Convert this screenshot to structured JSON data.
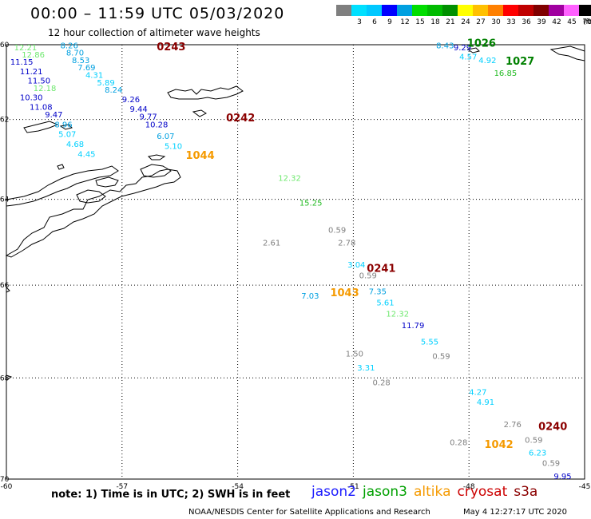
{
  "title": "00:00 – 11:59 UTC 05/03/2020",
  "subtitle": "12 hour collection of altimeter wave heights",
  "note": "note: 1) Time is in UTC; 2) SWH is in feet",
  "credit": "NOAA/NESDIS Center for Satellite Applications and Research",
  "stamp": "May  4 12:27:17 UTC 2020",
  "satellites": [
    {
      "name": "jason2",
      "color": "#1a1aff"
    },
    {
      "name": "jason3",
      "color": "#00a000"
    },
    {
      "name": "altika",
      "color": "#f59a00"
    },
    {
      "name": "cryosat",
      "color": "#cc0000"
    },
    {
      "name": "s3a",
      "color": "#8b0000"
    }
  ],
  "color_scale": {
    "unit": "(ft)",
    "bins": [
      {
        "label": "",
        "color": "#7f7f7f"
      },
      {
        "label": "3",
        "color": "#00e0ff"
      },
      {
        "label": "6",
        "color": "#00c8ff"
      },
      {
        "label": "9",
        "color": "#0000ff"
      },
      {
        "label": "12",
        "color": "#00a0e0"
      },
      {
        "label": "15",
        "color": "#00dd00"
      },
      {
        "label": "18",
        "color": "#00bb00"
      },
      {
        "label": "21",
        "color": "#009000"
      },
      {
        "label": "24",
        "color": "#ffff00"
      },
      {
        "label": "27",
        "color": "#ffc000"
      },
      {
        "label": "30",
        "color": "#ff8000"
      },
      {
        "label": "33",
        "color": "#ff0000"
      },
      {
        "label": "36",
        "color": "#c00000"
      },
      {
        "label": "39",
        "color": "#800000"
      },
      {
        "label": "42",
        "color": "#a000a0"
      },
      {
        "label": "45",
        "color": "#ff60ff"
      },
      {
        "label": "70",
        "color": "#000000"
      }
    ]
  },
  "map": {
    "lon_min": -60,
    "lon_max": -45,
    "lat_top": -60,
    "lat_bottom": -70,
    "lon_ticks": [
      -60,
      -57,
      -54,
      -51,
      -48,
      -45
    ],
    "lon_tick_labels": [
      "-60",
      "-57",
      "-54",
      "-51",
      "-48",
      "-45"
    ],
    "lat_ticks": [
      -60,
      -62,
      -64,
      -66,
      -68,
      -70
    ],
    "lat_tick_labels": [
      "-60",
      "-62",
      "-64",
      "-66",
      "-68",
      "-70"
    ],
    "grid": true,
    "lat_scale": "mercator"
  },
  "chart_data": {
    "type": "scatter",
    "title": "00:00 – 11:59 UTC 05/03/2020",
    "subtitle": "12 hour collection of altimeter wave heights",
    "x_label": "",
    "y_label": "",
    "xlim": [
      -60,
      -45
    ],
    "ylim": [
      -70,
      -60
    ],
    "points": [
      {
        "lon": -59.8,
        "lat": -60.15,
        "text": "12.21",
        "color": "#6ee86e"
      },
      {
        "lon": -59.6,
        "lat": -60.35,
        "text": "12.86",
        "color": "#6ee86e"
      },
      {
        "lon": -58.6,
        "lat": -60.1,
        "text": "8.26",
        "color": "#00a0e0"
      },
      {
        "lon": -58.45,
        "lat": -60.3,
        "text": "8.70",
        "color": "#00a0e0"
      },
      {
        "lon": -58.3,
        "lat": -60.5,
        "text": "8.53",
        "color": "#00a0e0"
      },
      {
        "lon": -58.15,
        "lat": -60.7,
        "text": "7.69",
        "color": "#00a0e0"
      },
      {
        "lon": -57.95,
        "lat": -60.9,
        "text": "4.31",
        "color": "#00d0ff"
      },
      {
        "lon": -57.65,
        "lat": -61.1,
        "text": "5.89",
        "color": "#00d0ff"
      },
      {
        "lon": -57.45,
        "lat": -61.3,
        "text": "8.24",
        "color": "#00a0e0"
      },
      {
        "lon": -57.0,
        "lat": -61.55,
        "text": "9.26",
        "color": "#0000c8"
      },
      {
        "lon": -56.8,
        "lat": -61.8,
        "text": "9.44",
        "color": "#0000c8"
      },
      {
        "lon": -56.55,
        "lat": -62.0,
        "text": "9.77",
        "color": "#0000c8"
      },
      {
        "lon": -56.4,
        "lat": -62.2,
        "text": "10.28",
        "color": "#0000c8"
      },
      {
        "lon": -56.1,
        "lat": -62.5,
        "text": "6.07",
        "color": "#00a0e0"
      },
      {
        "lon": -55.9,
        "lat": -62.75,
        "text": "5.10",
        "color": "#00d0ff"
      },
      {
        "lon": -59.9,
        "lat": -60.55,
        "text": "11.15",
        "color": "#0000c8"
      },
      {
        "lon": -59.65,
        "lat": -60.8,
        "text": "11.21",
        "color": "#0000c8"
      },
      {
        "lon": -59.45,
        "lat": -61.05,
        "text": "11.50",
        "color": "#0000c8"
      },
      {
        "lon": -59.3,
        "lat": -61.25,
        "text": "12.18",
        "color": "#6ee86e"
      },
      {
        "lon": -59.65,
        "lat": -61.5,
        "text": "10.30",
        "color": "#0000c8"
      },
      {
        "lon": -59.4,
        "lat": -61.75,
        "text": "11.08",
        "color": "#0000c8"
      },
      {
        "lon": -59.0,
        "lat": -61.95,
        "text": "9.47",
        "color": "#0000c8"
      },
      {
        "lon": -58.75,
        "lat": -62.2,
        "text": "8.96",
        "color": "#00a0e0"
      },
      {
        "lon": -58.65,
        "lat": -62.45,
        "text": "5.07",
        "color": "#00d0ff"
      },
      {
        "lon": -58.45,
        "lat": -62.7,
        "text": "4.68",
        "color": "#00d0ff"
      },
      {
        "lon": -58.15,
        "lat": -62.95,
        "text": "4.45",
        "color": "#00d0ff"
      },
      {
        "lon": -52.95,
        "lat": -63.55,
        "text": "12.32",
        "color": "#6ee86e"
      },
      {
        "lon": -52.4,
        "lat": -64.15,
        "text": "15.25",
        "color": "#22bb22"
      },
      {
        "lon": -51.65,
        "lat": -64.8,
        "text": "0.59",
        "color": "#808080"
      },
      {
        "lon": -53.35,
        "lat": -65.1,
        "text": "2.61",
        "color": "#808080"
      },
      {
        "lon": -51.4,
        "lat": -65.1,
        "text": "2.78",
        "color": "#808080"
      },
      {
        "lon": -51.15,
        "lat": -65.6,
        "text": "3.04",
        "color": "#00d0ff"
      },
      {
        "lon": -50.85,
        "lat": -65.85,
        "text": "0.59",
        "color": "#808080"
      },
      {
        "lon": -52.35,
        "lat": -66.3,
        "text": "7.03",
        "color": "#00a0e0"
      },
      {
        "lon": -50.6,
        "lat": -66.2,
        "text": "7.35",
        "color": "#00a0e0"
      },
      {
        "lon": -50.4,
        "lat": -66.45,
        "text": "5.61",
        "color": "#00d0ff"
      },
      {
        "lon": -50.15,
        "lat": -66.7,
        "text": "12.32",
        "color": "#6ee86e"
      },
      {
        "lon": -49.75,
        "lat": -66.95,
        "text": "11.79",
        "color": "#0000c8"
      },
      {
        "lon": -49.25,
        "lat": -67.3,
        "text": "5.55",
        "color": "#00d0ff"
      },
      {
        "lon": -51.2,
        "lat": -67.55,
        "text": "1.50",
        "color": "#808080"
      },
      {
        "lon": -48.95,
        "lat": -67.6,
        "text": "0.59",
        "color": "#808080"
      },
      {
        "lon": -50.9,
        "lat": -67.85,
        "text": "3.31",
        "color": "#00d0ff"
      },
      {
        "lon": -50.5,
        "lat": -68.15,
        "text": "0.28",
        "color": "#808080"
      },
      {
        "lon": -48.0,
        "lat": -68.35,
        "text": "4.27",
        "color": "#00d0ff"
      },
      {
        "lon": -47.8,
        "lat": -68.55,
        "text": "4.91",
        "color": "#00d0ff"
      },
      {
        "lon": -47.1,
        "lat": -69.0,
        "text": "2.76",
        "color": "#808080"
      },
      {
        "lon": -46.55,
        "lat": -69.3,
        "text": "0.59",
        "color": "#808080"
      },
      {
        "lon": -48.5,
        "lat": -69.35,
        "text": "0.28",
        "color": "#808080"
      },
      {
        "lon": -46.45,
        "lat": -69.55,
        "text": "6.23",
        "color": "#00d0ff"
      },
      {
        "lon": -46.1,
        "lat": -69.75,
        "text": "0.59",
        "color": "#808080"
      },
      {
        "lon": -45.8,
        "lat": -70.0,
        "text": "9.95",
        "color": "#0000c8"
      },
      {
        "lon": -48.85,
        "lat": -60.1,
        "text": "8.43",
        "color": "#00a0e0"
      },
      {
        "lon": -48.4,
        "lat": -60.15,
        "text": "9.29",
        "color": "#0000c8"
      },
      {
        "lon": -48.25,
        "lat": -60.4,
        "text": "4.57",
        "color": "#00d0ff"
      },
      {
        "lon": -47.75,
        "lat": -60.5,
        "text": "4.92",
        "color": "#00d0ff"
      },
      {
        "lon": -47.35,
        "lat": -60.85,
        "text": "16.85",
        "color": "#22bb22"
      }
    ],
    "time_labels": [
      {
        "lon": -56.1,
        "lat": -60.15,
        "text": "0243",
        "color": "#8b0000"
      },
      {
        "lon": -54.3,
        "lat": -62.05,
        "text": "0242",
        "color": "#8b0000"
      },
      {
        "lon": -55.35,
        "lat": -63.0,
        "text": "1044",
        "color": "#f59a00"
      },
      {
        "lon": -50.65,
        "lat": -65.7,
        "text": "0241",
        "color": "#8b0000"
      },
      {
        "lon": -51.6,
        "lat": -66.25,
        "text": "1043",
        "color": "#f59a00"
      },
      {
        "lon": -46.2,
        "lat": -69.05,
        "text": "0240",
        "color": "#8b0000"
      },
      {
        "lon": -47.6,
        "lat": -69.4,
        "text": "1042",
        "color": "#f59a00"
      },
      {
        "lon": -48.05,
        "lat": -60.05,
        "text": "1026",
        "color": "#008000"
      },
      {
        "lon": -47.05,
        "lat": -60.55,
        "text": "1027",
        "color": "#008000"
      }
    ]
  }
}
